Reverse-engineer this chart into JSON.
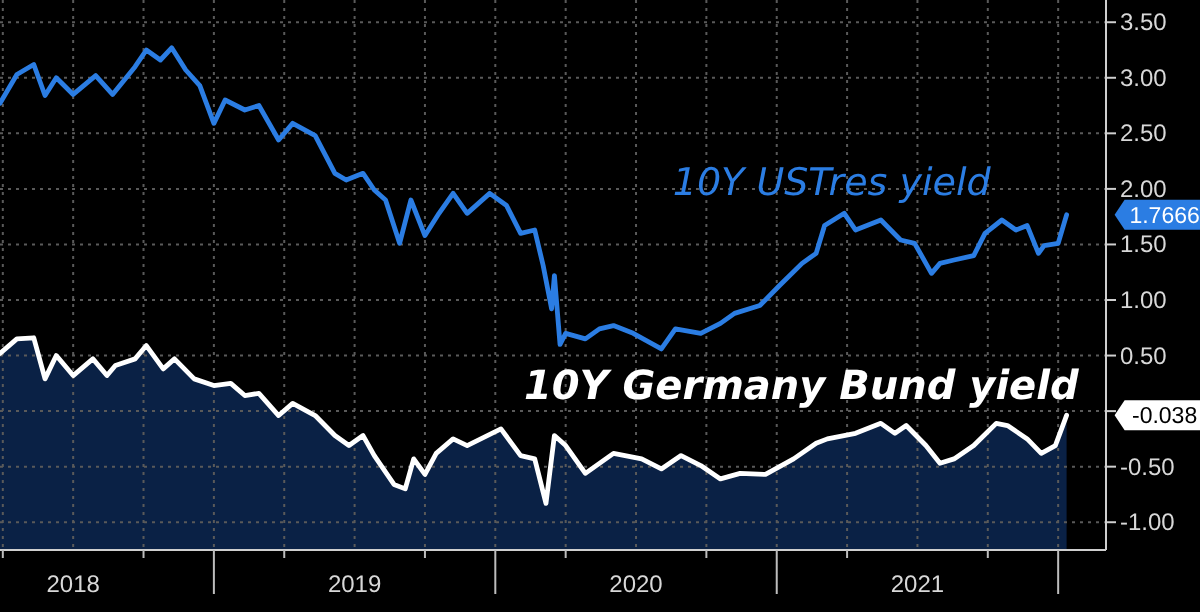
{
  "chart_data": {
    "type": "line",
    "xlim": [
      2018.24,
      2022.17
    ],
    "ylim": [
      -1.25,
      3.7
    ],
    "xticks": [
      {
        "value": 2018.25,
        "label": null
      },
      {
        "value": 2018.5,
        "label": "2018"
      },
      {
        "value": 2018.75,
        "label": null
      },
      {
        "value": 2019,
        "label": null
      },
      {
        "value": 2019.25,
        "label": null
      },
      {
        "value": 2019.5,
        "label": "2019"
      },
      {
        "value": 2019.75,
        "label": null
      },
      {
        "value": 2020,
        "label": null
      },
      {
        "value": 2020.25,
        "label": null
      },
      {
        "value": 2020.5,
        "label": "2020"
      },
      {
        "value": 2020.75,
        "label": null
      },
      {
        "value": 2021,
        "label": null
      },
      {
        "value": 2021.25,
        "label": null
      },
      {
        "value": 2021.5,
        "label": "2021"
      },
      {
        "value": 2021.75,
        "label": null
      },
      {
        "value": 2022,
        "label": null
      }
    ],
    "yticks": [
      {
        "value": -1,
        "label": "-1.00"
      },
      {
        "value": -0.5,
        "label": "-0.50"
      },
      {
        "value": 0,
        "label": null
      },
      {
        "value": 0.5,
        "label": "0.50"
      },
      {
        "value": 1,
        "label": "1.00"
      },
      {
        "value": 1.5,
        "label": "1.50"
      },
      {
        "value": 2,
        "label": "2.00"
      },
      {
        "value": 2.5,
        "label": "2.50"
      },
      {
        "value": 3,
        "label": "3.00"
      },
      {
        "value": 3.5,
        "label": "3.50"
      }
    ],
    "grid": true,
    "annotations": [
      {
        "text": "1.7666",
        "x": 2022.03,
        "y": 1.7666
      },
      {
        "text": "-0.038",
        "x": 2022.03,
        "y": -0.038
      }
    ],
    "series": [
      {
        "name": "10Y USTres yield",
        "color": "#2b7de3",
        "x": [
          2018.24,
          2018.3,
          2018.36,
          2018.4,
          2018.44,
          2018.5,
          2018.58,
          2018.64,
          2018.72,
          2018.76,
          2018.81,
          2018.85,
          2018.9,
          2018.95,
          2019.0,
          2019.04,
          2019.11,
          2019.16,
          2019.23,
          2019.28,
          2019.36,
          2019.43,
          2019.47,
          2019.53,
          2019.57,
          2019.61,
          2019.66,
          2019.7,
          2019.75,
          2019.8,
          2019.85,
          2019.9,
          2019.98,
          2020.04,
          2020.09,
          2020.14,
          2020.17,
          2020.2,
          2020.21,
          2020.23,
          2020.25,
          2020.32,
          2020.37,
          2020.42,
          2020.49,
          2020.59,
          2020.64,
          2020.73,
          2020.8,
          2020.85,
          2020.94,
          2021.01,
          2021.09,
          2021.14,
          2021.17,
          2021.24,
          2021.28,
          2021.37,
          2021.44,
          2021.49,
          2021.55,
          2021.58,
          2021.63,
          2021.7,
          2021.74,
          2021.8,
          2021.85,
          2021.89,
          2021.93,
          2021.95,
          2022.0,
          2022.03
        ],
        "values": [
          2.77,
          3.03,
          3.12,
          2.84,
          3.0,
          2.85,
          3.02,
          2.85,
          3.1,
          3.25,
          3.16,
          3.27,
          3.07,
          2.93,
          2.59,
          2.8,
          2.71,
          2.75,
          2.44,
          2.59,
          2.48,
          2.14,
          2.08,
          2.14,
          1.99,
          1.9,
          1.51,
          1.9,
          1.58,
          1.78,
          1.96,
          1.78,
          1.96,
          1.85,
          1.6,
          1.63,
          1.31,
          0.92,
          1.22,
          0.6,
          0.7,
          0.65,
          0.74,
          0.77,
          0.7,
          0.56,
          0.74,
          0.7,
          0.79,
          0.88,
          0.95,
          1.13,
          1.33,
          1.42,
          1.67,
          1.78,
          1.63,
          1.72,
          1.54,
          1.51,
          1.24,
          1.33,
          1.36,
          1.4,
          1.6,
          1.72,
          1.63,
          1.67,
          1.42,
          1.49,
          1.51,
          1.7666
        ]
      },
      {
        "name": "10Y Germany Bund yield",
        "color": "#ffffff",
        "x": [
          2018.24,
          2018.3,
          2018.36,
          2018.4,
          2018.44,
          2018.5,
          2018.57,
          2018.62,
          2018.65,
          2018.72,
          2018.76,
          2018.82,
          2018.86,
          2018.93,
          2019.0,
          2019.06,
          2019.11,
          2019.16,
          2019.23,
          2019.28,
          2019.36,
          2019.43,
          2019.48,
          2019.53,
          2019.57,
          2019.64,
          2019.68,
          2019.71,
          2019.75,
          2019.79,
          2019.85,
          2019.9,
          2020.02,
          2020.09,
          2020.14,
          2020.18,
          2020.21,
          2020.25,
          2020.32,
          2020.37,
          2020.42,
          2020.52,
          2020.59,
          2020.66,
          2020.73,
          2020.8,
          2020.87,
          2020.96,
          2021.06,
          2021.14,
          2021.18,
          2021.28,
          2021.37,
          2021.42,
          2021.46,
          2021.53,
          2021.58,
          2021.63,
          2021.7,
          2021.78,
          2021.82,
          2021.89,
          2021.94,
          2021.99,
          2022.03
        ],
        "values": [
          0.52,
          0.65,
          0.66,
          0.29,
          0.5,
          0.32,
          0.47,
          0.32,
          0.41,
          0.47,
          0.59,
          0.38,
          0.47,
          0.29,
          0.23,
          0.25,
          0.14,
          0.16,
          -0.04,
          0.07,
          -0.04,
          -0.22,
          -0.31,
          -0.22,
          -0.4,
          -0.66,
          -0.7,
          -0.43,
          -0.57,
          -0.38,
          -0.25,
          -0.31,
          -0.16,
          -0.4,
          -0.43,
          -0.83,
          -0.22,
          -0.31,
          -0.56,
          -0.47,
          -0.38,
          -0.43,
          -0.52,
          -0.4,
          -0.49,
          -0.61,
          -0.56,
          -0.57,
          -0.43,
          -0.29,
          -0.25,
          -0.2,
          -0.11,
          -0.2,
          -0.13,
          -0.31,
          -0.47,
          -0.43,
          -0.31,
          -0.11,
          -0.13,
          -0.25,
          -0.38,
          -0.31,
          -0.038
        ]
      }
    ]
  }
}
